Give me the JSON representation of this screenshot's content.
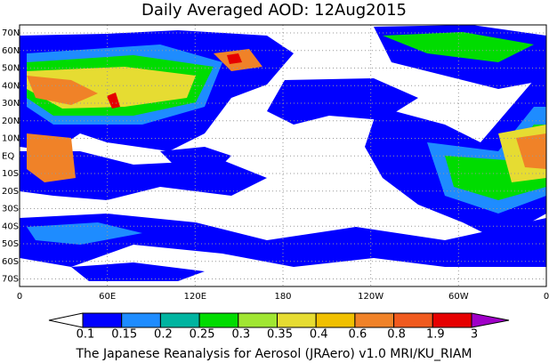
{
  "title": "Daily Averaged AOD: 12Aug2015",
  "lat_labels": [
    "70N",
    "60N",
    "50N",
    "40N",
    "30N",
    "20N",
    "10N",
    "EQ",
    "10S",
    "20S",
    "30S",
    "40S",
    "50S",
    "60S",
    "70S"
  ],
  "lon_labels": [
    "0",
    "60E",
    "120E",
    "180",
    "120W",
    "60W",
    "0"
  ],
  "colorbar": {
    "labels": [
      "0.1",
      "0.15",
      "0.2",
      "0.25",
      "0.3",
      "0.35",
      "0.4",
      "0.6",
      "0.8",
      "1.9",
      "3"
    ],
    "colors": [
      "#ffffff",
      "#0000ff",
      "#1e8cff",
      "#00b4a0",
      "#00dc00",
      "#a0e632",
      "#e6dc32",
      "#f0c000",
      "#f08228",
      "#f05a1e",
      "#e60000",
      "#a000c8"
    ]
  },
  "footer": "The Japanese Reanalysis for Aerosol (JRAero) v1.0 MRI/KU_RIAM"
}
